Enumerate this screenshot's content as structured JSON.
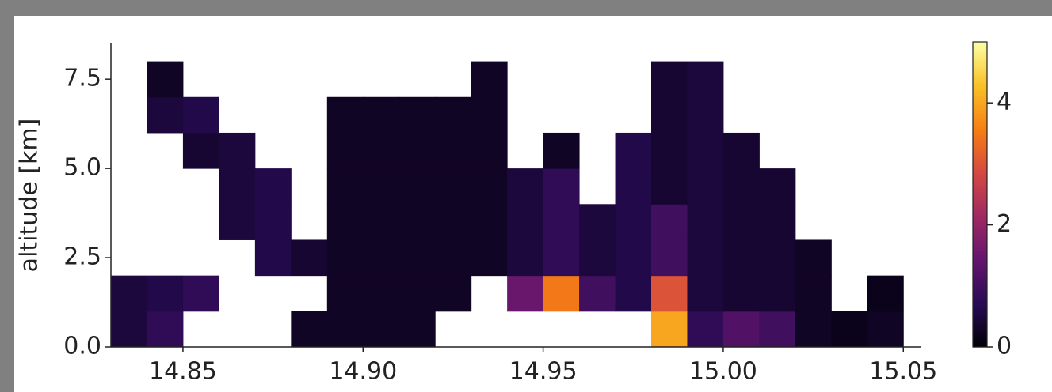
{
  "chart_data": {
    "type": "heatmap",
    "ylabel": "altitude [km]",
    "colormap": "inferno",
    "x_edges": [
      14.83,
      14.84,
      14.85,
      14.86,
      14.87,
      14.88,
      14.89,
      14.9,
      14.91,
      14.92,
      14.93,
      14.94,
      14.95,
      14.96,
      14.97,
      14.98,
      14.99,
      15.0,
      15.01,
      15.02,
      15.03,
      15.04,
      15.05
    ],
    "y_edges": [
      0,
      1,
      2,
      3,
      4,
      5,
      6,
      7,
      8
    ],
    "z": [
      [
        0.5,
        0.8,
        null,
        null,
        null,
        0.3,
        0.3,
        0.3,
        0.3,
        null,
        null,
        null,
        null,
        null,
        null,
        4.0,
        0.8,
        1.2,
        1.0,
        0.3,
        0.2,
        0.3
      ],
      [
        0.5,
        0.6,
        0.8,
        null,
        null,
        null,
        0.3,
        0.3,
        0.3,
        0.3,
        null,
        1.5,
        3.5,
        1.0,
        0.6,
        3.0,
        0.5,
        0.4,
        0.4,
        0.3,
        null,
        0.2
      ],
      [
        null,
        null,
        null,
        null,
        0.6,
        0.4,
        0.3,
        0.3,
        0.3,
        0.3,
        0.3,
        0.5,
        0.8,
        0.5,
        0.6,
        1.0,
        0.5,
        0.4,
        0.4,
        0.3,
        null,
        null
      ],
      [
        null,
        null,
        null,
        0.5,
        0.6,
        null,
        0.3,
        0.3,
        0.3,
        0.3,
        0.3,
        0.5,
        0.8,
        0.5,
        0.6,
        1.0,
        0.5,
        0.4,
        0.4,
        null,
        null,
        null
      ],
      [
        null,
        null,
        null,
        0.5,
        0.6,
        null,
        0.3,
        0.3,
        0.3,
        0.3,
        0.3,
        0.5,
        0.8,
        null,
        0.6,
        0.4,
        0.5,
        0.4,
        0.4,
        null,
        null,
        null
      ],
      [
        null,
        null,
        0.4,
        0.5,
        null,
        null,
        0.3,
        0.3,
        0.3,
        0.3,
        0.3,
        null,
        0.3,
        null,
        0.6,
        0.4,
        0.5,
        0.4,
        null,
        null,
        null,
        null
      ],
      [
        null,
        0.5,
        0.6,
        null,
        null,
        null,
        0.3,
        0.3,
        0.3,
        0.3,
        0.3,
        null,
        null,
        null,
        null,
        0.4,
        0.5,
        null,
        null,
        null,
        null,
        null
      ],
      [
        null,
        0.3,
        null,
        null,
        null,
        null,
        null,
        null,
        null,
        null,
        0.3,
        null,
        null,
        null,
        null,
        0.4,
        0.5,
        null,
        null,
        null,
        null,
        null
      ]
    ],
    "xlim": [
      14.83,
      15.055
    ],
    "xticks": [
      14.85,
      {
        "value": 14.9,
        "label": "14.90"
      },
      14.95,
      {
        "value": 15.0,
        "label": "15.00"
      },
      15.05
    ],
    "ylim": [
      0,
      8.5
    ],
    "yticks": [
      {
        "value": 0,
        "label": "0.0"
      },
      2.5,
      {
        "value": 5,
        "label": "5.0"
      },
      7.5
    ],
    "clim": [
      0,
      5
    ],
    "cticks": [
      0,
      2,
      4
    ]
  }
}
